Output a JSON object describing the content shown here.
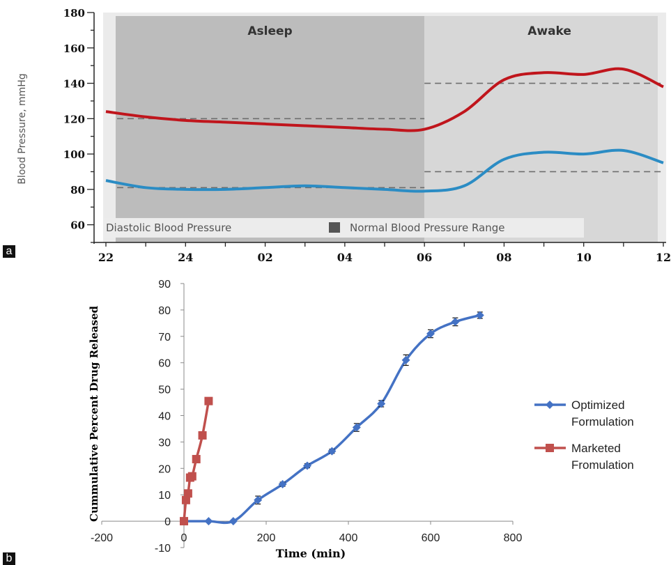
{
  "panels": {
    "a": "a",
    "b": "b"
  },
  "chart_data": [
    {
      "type": "line",
      "ylabel": "Blood Pressure, mmHg",
      "ylim": [
        50,
        180
      ],
      "y_ticks": [
        60,
        80,
        100,
        120,
        140,
        160,
        180
      ],
      "x_tick_labels": [
        "22",
        "24",
        "02",
        "04",
        "06",
        "08",
        "10",
        "12"
      ],
      "regions": [
        {
          "label": "Asleep",
          "from": "22",
          "to": "06"
        },
        {
          "label": "Awake",
          "from": "06",
          "to": "12"
        }
      ],
      "reference_lines": [
        {
          "period": "Asleep",
          "values": [
            120,
            81
          ]
        },
        {
          "period": "Awake",
          "values": [
            140,
            90
          ]
        }
      ],
      "legend": [
        {
          "label": "Diastolic Blood Pressure"
        },
        {
          "label": "Normal Blood Pressure Range"
        }
      ],
      "x": [
        "22",
        "23",
        "24",
        "01",
        "02",
        "03",
        "04",
        "05",
        "06",
        "07",
        "08",
        "09",
        "10",
        "11",
        "12"
      ],
      "series": [
        {
          "color": "#c0151c",
          "values": [
            124,
            121,
            119,
            118,
            117,
            116,
            115,
            114,
            114,
            124,
            142,
            146,
            145,
            148,
            138
          ]
        },
        {
          "color": "#2b8cc4",
          "values": [
            85,
            81,
            80,
            80,
            81,
            82,
            81,
            80,
            79,
            82,
            97,
            101,
            100,
            102,
            95
          ]
        }
      ]
    },
    {
      "type": "line",
      "xlabel": "Time (min)",
      "ylabel": "Cummulative Percent Drug Released",
      "xlim": [
        -200,
        800
      ],
      "ylim": [
        -10,
        90
      ],
      "x_ticks": [
        -200,
        0,
        200,
        400,
        600,
        800
      ],
      "y_ticks": [
        -10,
        0,
        10,
        20,
        30,
        40,
        50,
        60,
        70,
        80,
        90
      ],
      "legend_position": "right",
      "series": [
        {
          "name": "Optimized Formulation",
          "color": "#4472c4",
          "marker": "diamond",
          "x": [
            0,
            60,
            120,
            180,
            240,
            300,
            360,
            420,
            480,
            540,
            600,
            660,
            720
          ],
          "y": [
            0,
            0,
            0,
            8,
            14,
            21,
            26.5,
            35.5,
            44.5,
            61,
            71,
            75.5,
            78
          ],
          "err": [
            0,
            0,
            0,
            1.5,
            0.8,
            0.8,
            0.8,
            1.5,
            1.2,
            2,
            1.5,
            1.5,
            1.2
          ]
        },
        {
          "name": "Marketed Fromulation",
          "color": "#c0504d",
          "marker": "square",
          "x": [
            0,
            5,
            10,
            15,
            20,
            30,
            45,
            60
          ],
          "y": [
            0,
            8,
            10.5,
            16.5,
            17,
            23.5,
            32.5,
            45.5
          ]
        }
      ]
    }
  ]
}
